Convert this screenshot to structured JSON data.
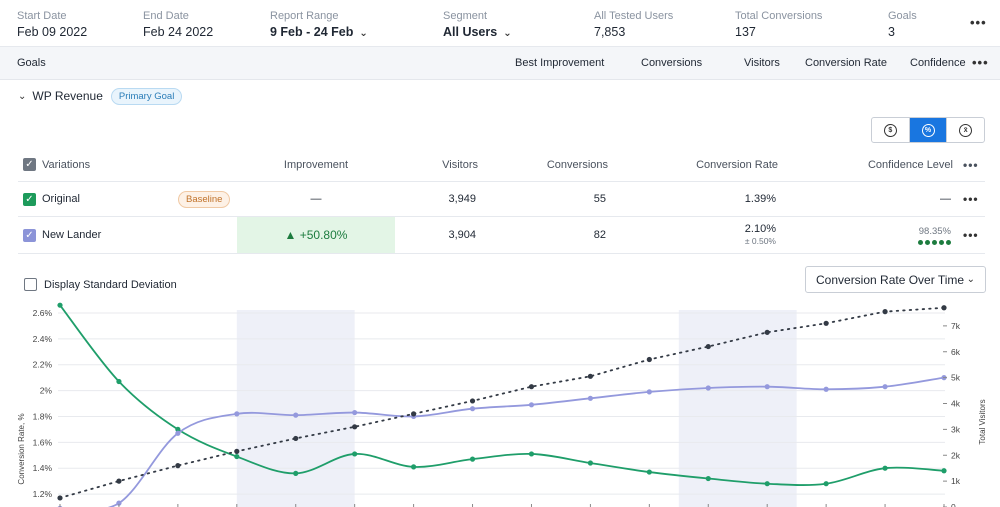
{
  "summary": {
    "start_date": {
      "label": "Start Date",
      "value": "Feb 09 2022"
    },
    "end_date": {
      "label": "End Date",
      "value": "Feb 24 2022"
    },
    "report_range": {
      "label": "Report Range",
      "value": "9 Feb - 24 Feb"
    },
    "segment": {
      "label": "Segment",
      "value": "All Users"
    },
    "tested_users": {
      "label": "All Tested Users",
      "value": "7,853"
    },
    "total_conversions": {
      "label": "Total Conversions",
      "value": "137"
    },
    "goals": {
      "label": "Goals",
      "value": "3"
    },
    "more": "•••"
  },
  "goals_bar": {
    "title": "Goals",
    "columns": [
      "Best Improvement",
      "Conversions",
      "Visitors",
      "Conversion Rate",
      "Confidence"
    ],
    "more": "•••"
  },
  "goal": {
    "name": "WP Revenue",
    "badge": "Primary Goal"
  },
  "toggle": {
    "options": [
      {
        "icon": "dollar-icon",
        "glyph": "$"
      },
      {
        "icon": "percent-icon",
        "glyph": "%"
      },
      {
        "icon": "average-icon",
        "glyph": "x̄"
      }
    ],
    "active_index": 1
  },
  "table": {
    "headers": {
      "variations": "Variations",
      "improvement": "Improvement",
      "visitors": "Visitors",
      "conversions": "Conversions",
      "conversion_rate": "Conversion Rate",
      "confidence_level": "Confidence Level",
      "more": "•••"
    },
    "rows": [
      {
        "name": "Original",
        "badge": "Baseline",
        "improvement": "—",
        "visitors": "3,949",
        "conversions": "55",
        "conversion_rate": "1.39%",
        "conversion_rate_sub": "",
        "confidence": "—",
        "more": "•••",
        "color": "#1d9b5b"
      },
      {
        "name": "New Lander",
        "badge": "",
        "improvement": "▲ +50.80%",
        "visitors": "3,904",
        "conversions": "82",
        "conversion_rate": "2.10%",
        "conversion_rate_sub": "± 0.50%",
        "confidence": "98.35%",
        "confidence_level": 5,
        "more": "•••",
        "color": "#8c94d8"
      }
    ]
  },
  "std_dev": {
    "label": "Display Standard Deviation",
    "checked": false
  },
  "chart_select": {
    "value": "Conversion Rate Over Time"
  },
  "chart_data": {
    "type": "line",
    "ylabel": "Conversion Rate, %",
    "y2label": "Total Visitors",
    "y_ticks": [
      "1.2%",
      "1.4%",
      "1.6%",
      "1.8%",
      "2%",
      "2.2%",
      "2.4%",
      "2.6%"
    ],
    "y_tick_values": [
      1.2,
      1.4,
      1.6,
      1.8,
      2.0,
      2.2,
      2.4,
      2.6
    ],
    "y2_ticks": [
      "0",
      "1k",
      "2k",
      "3k",
      "4k",
      "5k",
      "6k",
      "7k"
    ],
    "y2_tick_values": [
      0,
      1000,
      2000,
      3000,
      4000,
      5000,
      6000,
      7000
    ],
    "ylim": [
      1.1,
      2.7
    ],
    "y2lim": [
      0,
      8000
    ],
    "x_count": 16,
    "shaded_ranges": [
      [
        3,
        5
      ],
      [
        10.5,
        12.5
      ]
    ],
    "series": [
      {
        "name": "Original",
        "color": "#1f9e6a",
        "axis": "left",
        "style": "solid",
        "values": [
          2.66,
          2.07,
          1.7,
          1.49,
          1.36,
          1.51,
          1.41,
          1.47,
          1.51,
          1.44,
          1.37,
          1.32,
          1.28,
          1.28,
          1.4,
          1.38
        ]
      },
      {
        "name": "New Lander",
        "color": "#9499dd",
        "axis": "left",
        "style": "solid",
        "values": [
          1.09,
          1.13,
          1.67,
          1.82,
          1.81,
          1.83,
          1.8,
          1.86,
          1.89,
          1.94,
          1.99,
          2.02,
          2.03,
          2.01,
          2.03,
          2.1
        ]
      },
      {
        "name": "Total Visitors",
        "color": "#333a45",
        "axis": "right",
        "style": "dotted",
        "values": [
          350,
          1000,
          1600,
          2150,
          2650,
          3100,
          3600,
          4100,
          4650,
          5050,
          5700,
          6200,
          6750,
          7100,
          7550,
          7700
        ]
      }
    ]
  }
}
